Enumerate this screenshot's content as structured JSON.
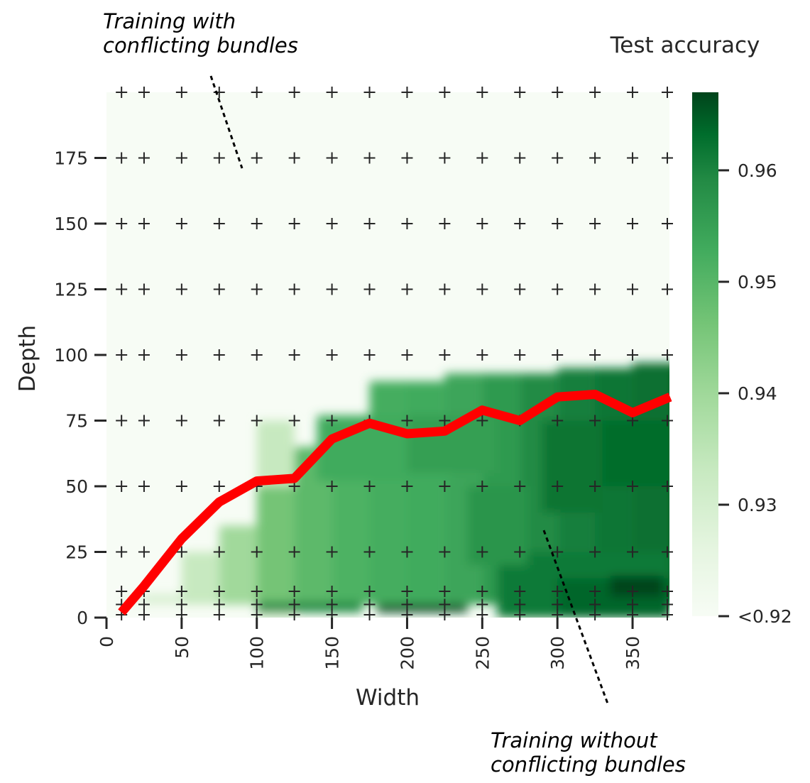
{
  "chart_data": {
    "type": "heatmap",
    "xlabel": "Width",
    "ylabel": "Depth",
    "colorbar_title": "Test accuracy",
    "xlim": [
      0,
      375
    ],
    "ylim": [
      0,
      200
    ],
    "x_ticks": [
      0,
      50,
      100,
      150,
      200,
      250,
      300,
      350
    ],
    "y_ticks": [
      0,
      25,
      50,
      75,
      100,
      125,
      150,
      175
    ],
    "colorbar": {
      "colormap": "Greens",
      "range": [
        0.92,
        0.967
      ],
      "ticks": [
        {
          "value": 0.92,
          "label": "<0.92"
        },
        {
          "value": 0.93,
          "label": "0.93"
        },
        {
          "value": 0.94,
          "label": "0.94"
        },
        {
          "value": 0.95,
          "label": "0.95"
        },
        {
          "value": 0.96,
          "label": "0.96"
        }
      ]
    },
    "grid_widths": [
      10,
      25,
      50,
      75,
      100,
      125,
      150,
      175,
      200,
      225,
      250,
      275,
      300,
      325,
      350,
      375
    ],
    "grid_depths": [
      0,
      5,
      10,
      25,
      50,
      75,
      100,
      125,
      150,
      175,
      200
    ],
    "boundary_line": {
      "color": "#ff0000",
      "x": [
        10,
        25,
        50,
        75,
        100,
        125,
        150,
        175,
        200,
        225,
        250,
        275,
        300,
        325,
        350,
        375
      ],
      "y": [
        2,
        12,
        30,
        44,
        52,
        53,
        68,
        74,
        70,
        71,
        79,
        75,
        84,
        85,
        78,
        84
      ]
    },
    "annotations": [
      {
        "name": "with",
        "lines": [
          "Training with",
          "conflicting bundles"
        ]
      },
      {
        "name": "without",
        "lines": [
          "Training without",
          "conflicting bundles"
        ]
      }
    ]
  }
}
